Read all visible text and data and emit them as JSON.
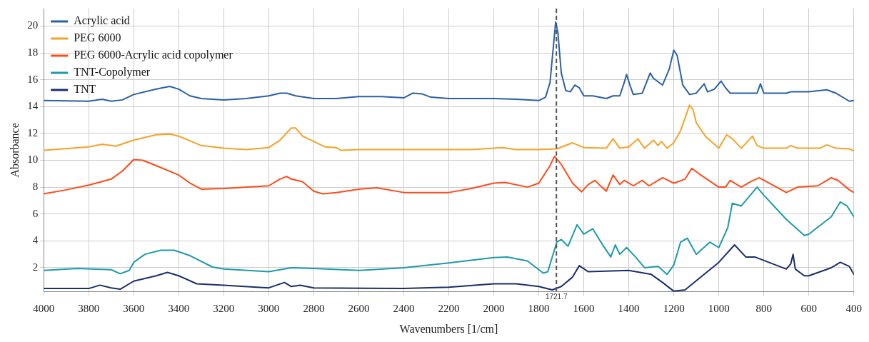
{
  "chart_data": {
    "type": "line",
    "xlabel": "Wavenumbers [1/cm]",
    "ylabel": "Absorbance",
    "xlim": [
      4000,
      400
    ],
    "xticks": [
      4000,
      3800,
      3600,
      3400,
      3200,
      3000,
      2800,
      2600,
      2400,
      2200,
      2000,
      1800,
      1600,
      1400,
      1200,
      1000,
      800,
      600,
      400
    ],
    "ylim": [
      0.2,
      21.3
    ],
    "yticks": [
      2,
      4,
      6,
      8,
      10,
      12,
      14,
      16,
      18,
      20
    ],
    "grid": true,
    "legend": "top left",
    "marker": "none",
    "line_style": "solid",
    "ref_lines": [
      {
        "axis": "x",
        "value": 1721.7,
        "label": "1721.7",
        "color": "#555555",
        "line_style": "dashed"
      }
    ],
    "series": [
      {
        "name": "Acrylic acid",
        "color": "#2a5fa8",
        "x": [
          4000,
          3800,
          3740,
          3700,
          3650,
          3600,
          3500,
          3440,
          3400,
          3350,
          3300,
          3200,
          3100,
          3000,
          2950,
          2920,
          2880,
          2800,
          2700,
          2600,
          2500,
          2400,
          2360,
          2320,
          2280,
          2200,
          2000,
          1900,
          1800,
          1770,
          1750,
          1735,
          1725,
          1715,
          1700,
          1680,
          1660,
          1640,
          1620,
          1600,
          1560,
          1500,
          1470,
          1440,
          1420,
          1410,
          1395,
          1380,
          1340,
          1305,
          1290,
          1250,
          1220,
          1200,
          1185,
          1160,
          1130,
          1100,
          1065,
          1050,
          1020,
          990,
          970,
          950,
          900,
          830,
          815,
          800,
          700,
          680,
          600,
          520,
          480,
          420,
          400
        ],
        "values": [
          14.45,
          14.4,
          14.55,
          14.4,
          14.5,
          14.9,
          15.3,
          15.5,
          15.3,
          14.8,
          14.6,
          14.5,
          14.6,
          14.8,
          15.0,
          15.0,
          14.8,
          14.6,
          14.6,
          14.75,
          14.75,
          14.65,
          15.0,
          14.95,
          14.7,
          14.6,
          14.6,
          14.55,
          14.45,
          14.7,
          15.8,
          18.5,
          20.3,
          19.5,
          16.5,
          15.2,
          15.1,
          15.6,
          15.4,
          14.8,
          14.8,
          14.6,
          14.8,
          14.8,
          15.8,
          16.4,
          15.6,
          14.9,
          15.0,
          16.5,
          16.1,
          15.6,
          16.8,
          18.2,
          17.8,
          15.6,
          14.9,
          15.0,
          15.7,
          15.1,
          15.3,
          15.9,
          15.4,
          15.0,
          15.0,
          15.0,
          15.7,
          15.0,
          15.0,
          15.1,
          15.1,
          15.25,
          15.0,
          14.4,
          14.45
        ]
      },
      {
        "name": "PEG 6000",
        "color": "#f7a128",
        "x": [
          4000,
          3800,
          3740,
          3680,
          3600,
          3500,
          3440,
          3400,
          3300,
          3200,
          3100,
          3000,
          2950,
          2900,
          2880,
          2850,
          2800,
          2750,
          2700,
          2680,
          2600,
          2400,
          2100,
          1960,
          1900,
          1800,
          1720,
          1650,
          1600,
          1500,
          1470,
          1440,
          1400,
          1360,
          1330,
          1290,
          1270,
          1255,
          1230,
          1200,
          1170,
          1130,
          1115,
          1100,
          1060,
          1000,
          965,
          940,
          900,
          850,
          830,
          800,
          700,
          680,
          650,
          550,
          520,
          480,
          420,
          400
        ],
        "values": [
          10.75,
          11.0,
          11.2,
          11.05,
          11.5,
          11.9,
          11.95,
          11.8,
          11.1,
          10.9,
          10.8,
          10.95,
          11.5,
          12.4,
          12.4,
          11.8,
          11.4,
          11.0,
          10.95,
          10.75,
          10.8,
          10.8,
          10.8,
          10.95,
          10.8,
          10.8,
          10.85,
          11.3,
          10.95,
          10.9,
          11.6,
          10.9,
          11.0,
          11.6,
          10.9,
          11.5,
          11.1,
          11.4,
          10.9,
          11.3,
          12.2,
          14.1,
          13.8,
          12.8,
          11.8,
          10.9,
          11.9,
          11.6,
          10.9,
          11.8,
          11.1,
          10.9,
          10.9,
          11.1,
          10.9,
          10.9,
          11.15,
          10.9,
          10.85,
          10.7
        ]
      },
      {
        "name": "PEG 6000-Acrylic acid copolymer",
        "color": "#ff4a17",
        "x": [
          4000,
          3900,
          3800,
          3700,
          3650,
          3600,
          3560,
          3500,
          3400,
          3350,
          3300,
          3200,
          3000,
          2950,
          2920,
          2900,
          2850,
          2800,
          2760,
          2700,
          2600,
          2520,
          2400,
          2200,
          2100,
          2000,
          1950,
          1850,
          1800,
          1750,
          1730,
          1700,
          1650,
          1610,
          1580,
          1550,
          1520,
          1500,
          1470,
          1440,
          1420,
          1380,
          1340,
          1310,
          1250,
          1200,
          1150,
          1120,
          1080,
          1000,
          970,
          950,
          900,
          860,
          820,
          700,
          650,
          560,
          500,
          470,
          420,
          400
        ],
        "values": [
          7.5,
          7.8,
          8.15,
          8.6,
          9.2,
          10.05,
          10.0,
          9.6,
          8.9,
          8.3,
          7.85,
          7.9,
          8.1,
          8.6,
          8.8,
          8.6,
          8.4,
          7.7,
          7.5,
          7.6,
          7.85,
          7.95,
          7.6,
          7.6,
          7.9,
          8.3,
          8.35,
          8.0,
          8.3,
          9.6,
          10.3,
          9.7,
          8.3,
          7.65,
          8.2,
          8.5,
          8.0,
          7.7,
          8.9,
          8.2,
          8.5,
          8.1,
          8.5,
          8.1,
          8.7,
          8.3,
          8.6,
          9.4,
          8.9,
          8.0,
          8.0,
          8.5,
          8.0,
          8.4,
          8.7,
          7.6,
          8.0,
          8.1,
          8.7,
          8.5,
          7.8,
          7.6
        ]
      },
      {
        "name": "TNT-Copolymer",
        "color": "#1e9aa8",
        "x": [
          4000,
          3850,
          3700,
          3660,
          3620,
          3600,
          3550,
          3480,
          3420,
          3350,
          3250,
          3200,
          3000,
          2900,
          2800,
          2600,
          2400,
          2200,
          2000,
          1940,
          1850,
          1780,
          1760,
          1720,
          1700,
          1670,
          1630,
          1600,
          1560,
          1520,
          1480,
          1460,
          1440,
          1410,
          1370,
          1330,
          1270,
          1230,
          1200,
          1170,
          1140,
          1100,
          1040,
          1000,
          960,
          940,
          900,
          850,
          830,
          800,
          700,
          620,
          600,
          500,
          460,
          430,
          400
        ],
        "values": [
          1.8,
          1.95,
          1.85,
          1.55,
          1.8,
          2.4,
          3.0,
          3.3,
          3.3,
          2.9,
          2.05,
          1.9,
          1.7,
          2.0,
          1.95,
          1.8,
          2.0,
          2.35,
          2.75,
          2.8,
          2.5,
          1.6,
          1.7,
          3.9,
          4.1,
          3.6,
          5.2,
          4.5,
          4.9,
          3.8,
          2.8,
          3.7,
          3.0,
          3.5,
          2.8,
          2.0,
          2.1,
          1.5,
          2.2,
          3.9,
          4.2,
          3.0,
          3.9,
          3.5,
          5.0,
          6.8,
          6.6,
          7.6,
          8.0,
          7.4,
          5.6,
          4.4,
          4.5,
          5.8,
          6.9,
          6.6,
          5.8
        ]
      },
      {
        "name": "TNT",
        "color": "#1a2f6b",
        "x": [
          4000,
          3800,
          3750,
          3700,
          3660,
          3600,
          3500,
          3450,
          3400,
          3320,
          3200,
          3000,
          2930,
          2900,
          2860,
          2800,
          2400,
          2200,
          2000,
          1900,
          1800,
          1740,
          1700,
          1650,
          1620,
          1580,
          1400,
          1300,
          1250,
          1200,
          1150,
          1000,
          930,
          880,
          840,
          700,
          680,
          670,
          660,
          620,
          600,
          500,
          460,
          420,
          400
        ],
        "values": [
          0.45,
          0.45,
          0.7,
          0.5,
          0.4,
          1.0,
          1.4,
          1.65,
          1.4,
          0.8,
          0.7,
          0.5,
          0.9,
          0.6,
          0.7,
          0.5,
          0.45,
          0.55,
          0.8,
          0.8,
          0.6,
          0.35,
          0.6,
          1.3,
          2.15,
          1.7,
          1.8,
          1.5,
          0.9,
          0.25,
          0.35,
          2.4,
          3.7,
          2.8,
          2.8,
          1.9,
          2.3,
          3.0,
          1.9,
          1.4,
          1.4,
          2.0,
          2.4,
          2.1,
          1.5
        ]
      }
    ]
  }
}
